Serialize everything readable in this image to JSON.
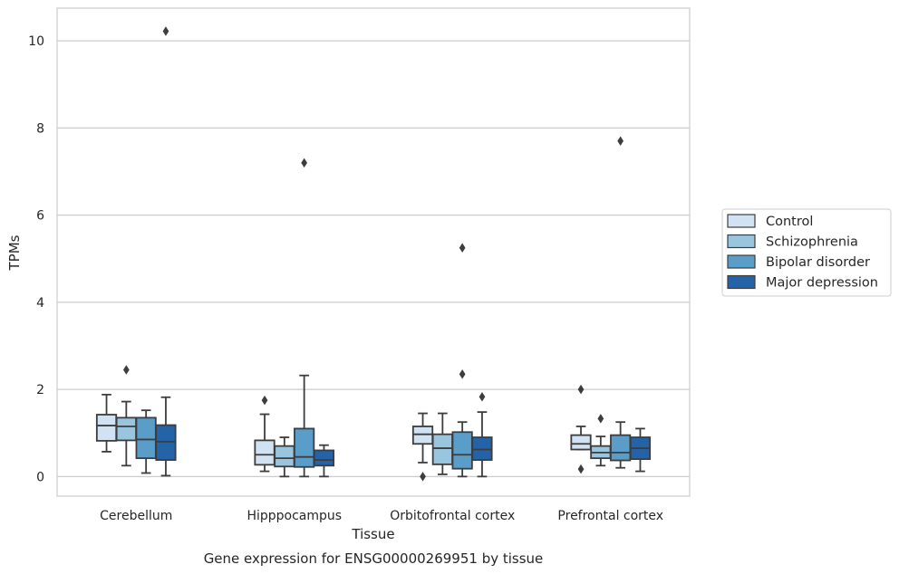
{
  "caption": "Gene expression for ENSG00000269951 by tissue",
  "chart_data": {
    "type": "box",
    "xlabel": "Tissue",
    "ylabel": "TPMs",
    "ylim": [
      -0.45,
      10.75
    ],
    "yticks": [
      0,
      2,
      4,
      6,
      8,
      10
    ],
    "grid": "horizontal",
    "legend_position": "right",
    "categories": [
      "Cerebellum",
      "Hipppocampus",
      "Orbitofrontal cortex",
      "Prefrontal cortex"
    ],
    "series": [
      {
        "name": "Control",
        "color": "#d1e2f2",
        "boxes": [
          {
            "whislo": 0.57,
            "q1": 0.82,
            "med": 1.17,
            "q3": 1.42,
            "whishi": 1.88,
            "fliers": []
          },
          {
            "whislo": 0.12,
            "q1": 0.27,
            "med": 0.5,
            "q3": 0.83,
            "whishi": 1.43,
            "fliers": [
              1.75
            ]
          },
          {
            "whislo": 0.32,
            "q1": 0.75,
            "med": 0.97,
            "q3": 1.15,
            "whishi": 1.45,
            "fliers": [
              0.0
            ]
          },
          {
            "whislo": 0.62,
            "q1": 0.62,
            "med": 0.75,
            "q3": 0.95,
            "whishi": 1.15,
            "fliers": [
              2.0,
              0.17
            ]
          }
        ]
      },
      {
        "name": "Schizophrenia",
        "color": "#9ac5de",
        "boxes": [
          {
            "whislo": 0.25,
            "q1": 0.83,
            "med": 1.15,
            "q3": 1.35,
            "whishi": 1.72,
            "fliers": [
              2.45
            ]
          },
          {
            "whislo": 0.0,
            "q1": 0.23,
            "med": 0.42,
            "q3": 0.7,
            "whishi": 0.9,
            "fliers": []
          },
          {
            "whislo": 0.05,
            "q1": 0.28,
            "med": 0.65,
            "q3": 0.97,
            "whishi": 1.45,
            "fliers": []
          },
          {
            "whislo": 0.25,
            "q1": 0.42,
            "med": 0.55,
            "q3": 0.7,
            "whishi": 0.92,
            "fliers": [
              1.33
            ]
          }
        ]
      },
      {
        "name": "Bipolar disorder",
        "color": "#5a9dc9",
        "boxes": [
          {
            "whislo": 0.08,
            "q1": 0.42,
            "med": 0.85,
            "q3": 1.35,
            "whishi": 1.52,
            "fliers": []
          },
          {
            "whislo": 0.0,
            "q1": 0.22,
            "med": 0.45,
            "q3": 1.1,
            "whishi": 2.32,
            "fliers": [
              7.2
            ]
          },
          {
            "whislo": 0.0,
            "q1": 0.18,
            "med": 0.5,
            "q3": 1.02,
            "whishi": 1.25,
            "fliers": [
              5.25,
              2.35
            ]
          },
          {
            "whislo": 0.2,
            "q1": 0.37,
            "med": 0.55,
            "q3": 0.95,
            "whishi": 1.25,
            "fliers": [
              7.7
            ]
          }
        ]
      },
      {
        "name": "Major depression",
        "color": "#2463a7",
        "boxes": [
          {
            "whislo": 0.02,
            "q1": 0.38,
            "med": 0.8,
            "q3": 1.18,
            "whishi": 1.82,
            "fliers": [
              10.22
            ]
          },
          {
            "whislo": 0.0,
            "q1": 0.25,
            "med": 0.38,
            "q3": 0.6,
            "whishi": 0.72,
            "fliers": []
          },
          {
            "whislo": 0.0,
            "q1": 0.38,
            "med": 0.62,
            "q3": 0.9,
            "whishi": 1.48,
            "fliers": [
              1.83
            ]
          },
          {
            "whislo": 0.12,
            "q1": 0.4,
            "med": 0.65,
            "q3": 0.9,
            "whishi": 1.1,
            "fliers": []
          }
        ]
      }
    ]
  }
}
